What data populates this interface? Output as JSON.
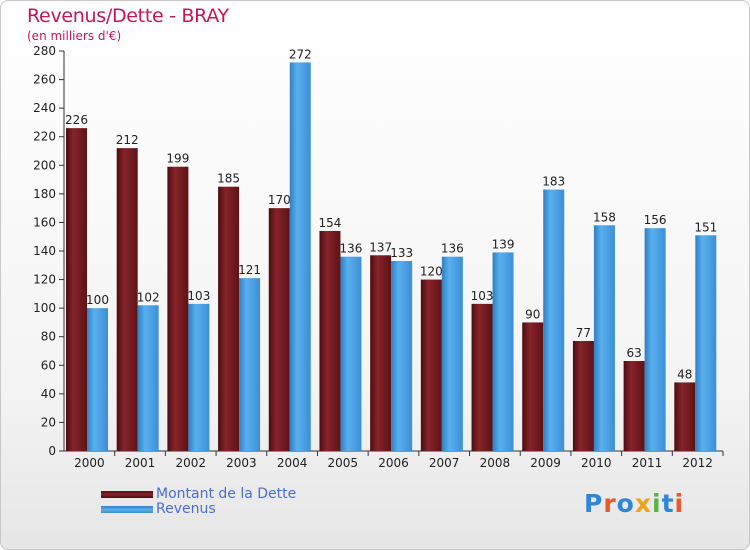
{
  "title": "Revenus/Dette - BRAY",
  "subtitle": "(en milliers d'€)",
  "logo": {
    "text": "Proxiti",
    "letter_colors": [
      "#2e86d9",
      "#e8592a",
      "#2e86d9",
      "#f0a21b",
      "#5bb347",
      "#2e86d9",
      "#e8592a"
    ]
  },
  "colors": {
    "dette": "#7a1a1d",
    "revenus": "#4aa3e6",
    "text": "#222222",
    "title": "#c2185b",
    "legend_text": "#4a6fd1"
  },
  "chart_data": {
    "type": "bar",
    "title": "Revenus/Dette - BRAY",
    "subtitle": "(en milliers d'€)",
    "xlabel": "",
    "ylabel": "",
    "categories": [
      "2000",
      "2001",
      "2002",
      "2003",
      "2004",
      "2005",
      "2006",
      "2007",
      "2008",
      "2009",
      "2010",
      "2011",
      "2012"
    ],
    "series": [
      {
        "name": "Montant de la Dette",
        "values": [
          226,
          212,
          199,
          185,
          170,
          154,
          137,
          120,
          103,
          90,
          77,
          63,
          48
        ]
      },
      {
        "name": "Revenus",
        "values": [
          100,
          102,
          103,
          121,
          272,
          136,
          133,
          136,
          139,
          183,
          158,
          156,
          151
        ]
      }
    ],
    "ylim": [
      0,
      280
    ],
    "yticks": [
      0,
      20,
      40,
      60,
      80,
      100,
      120,
      140,
      160,
      180,
      200,
      220,
      240,
      260,
      280
    ],
    "grid": false,
    "data_labels": true,
    "legend_position": "bottom-left"
  }
}
